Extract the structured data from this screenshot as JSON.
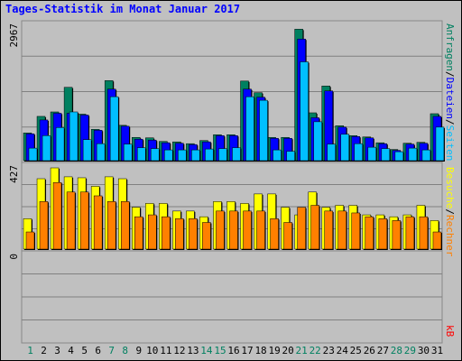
{
  "title": "Tages-Statistik im Monat Januar 2017",
  "chart_data": {
    "type": "bar",
    "title": "Tages-Statistik im Monat Januar 2017",
    "categories": [
      "1",
      "2",
      "3",
      "4",
      "5",
      "6",
      "7",
      "8",
      "9",
      "10",
      "11",
      "12",
      "13",
      "14",
      "15",
      "16",
      "17",
      "18",
      "19",
      "20",
      "21",
      "22",
      "23",
      "24",
      "25",
      "26",
      "27",
      "28",
      "29",
      "30",
      "31"
    ],
    "weekend_days": [
      "1",
      "7",
      "8",
      "14",
      "15",
      "21",
      "22",
      "28",
      "29"
    ],
    "panels": [
      {
        "name": "top",
        "ymax_label": "2967",
        "ylim": [
          0,
          2967
        ],
        "series": [
          {
            "name": "Anfragen",
            "color": "#008060",
            "values": [
              620,
              990,
              1090,
              1640,
              1040,
              700,
              1790,
              790,
              520,
              510,
              430,
              420,
              380,
              450,
              580,
              580,
              1780,
              1520,
              520,
              520,
              2940,
              1070,
              1670,
              780,
              560,
              530,
              400,
              250,
              390,
              410,
              1050
            ]
          },
          {
            "name": "Dateien",
            "color": "#0000ff",
            "values": [
              600,
              910,
              1060,
              1060,
              1020,
              680,
              1600,
              770,
              480,
              460,
              400,
              390,
              360,
              420,
              560,
              560,
              1600,
              1420,
              500,
              500,
              2720,
              960,
              1560,
              750,
              540,
              510,
              380,
              230,
              370,
              390,
              990
            ]
          },
          {
            "name": "Seiten",
            "color": "#00bfff",
            "values": [
              280,
              560,
              740,
              1090,
              470,
              380,
              1430,
              370,
              290,
              270,
              240,
              240,
              240,
              260,
              270,
              290,
              1430,
              1350,
              240,
              210,
              2210,
              870,
              370,
              590,
              380,
              300,
              270,
              200,
              280,
              240,
              750
            ]
          }
        ]
      },
      {
        "name": "middle",
        "ymax_label": "427",
        "ylim": [
          0,
          427
        ],
        "series": [
          {
            "name": "Besuche",
            "color": "#ffff00",
            "values": [
              160,
              370,
              427,
              380,
              375,
              330,
              380,
              370,
              220,
              240,
              240,
              200,
              200,
              170,
              250,
              250,
              240,
              290,
              290,
              220,
              180,
              300,
              220,
              230,
              230,
              180,
              180,
              170,
              180,
              230,
              150
            ]
          },
          {
            "name": "Rechner",
            "color": "#ff8000",
            "values": [
              90,
              250,
              350,
              300,
              300,
              280,
              250,
              250,
              170,
              180,
              170,
              160,
              160,
              140,
              200,
              200,
              200,
              200,
              160,
              140,
              220,
              230,
              200,
              200,
              190,
              170,
              160,
              150,
              170,
              170,
              90
            ]
          }
        ]
      },
      {
        "name": "bottom",
        "ymax_label": "0",
        "ylim": [
          0,
          1
        ],
        "series": [
          {
            "name": "kB",
            "color": "#ff0000",
            "values": [
              0,
              0,
              0,
              0,
              0,
              0,
              0,
              0,
              0,
              0,
              0,
              0,
              0,
              0,
              0,
              0,
              0,
              0,
              0,
              0,
              0,
              0,
              0,
              0,
              0,
              0,
              0,
              0,
              0,
              0,
              0
            ]
          }
        ]
      }
    ],
    "right_legend_top": [
      {
        "text": "Anfragen",
        "color": "#008060"
      },
      {
        "text": "Dateien",
        "color": "#0000ff"
      },
      {
        "text": "Seiten",
        "color": "#00bfff"
      }
    ],
    "right_legend_middle": [
      {
        "text": "Besuche",
        "color": "#ffff00"
      },
      {
        "text": "Rechner",
        "color": "#ff8000"
      }
    ],
    "right_legend_bottom": [
      {
        "text": "kB",
        "color": "#ff0000"
      }
    ],
    "legend_separator": "/",
    "grid": true
  }
}
